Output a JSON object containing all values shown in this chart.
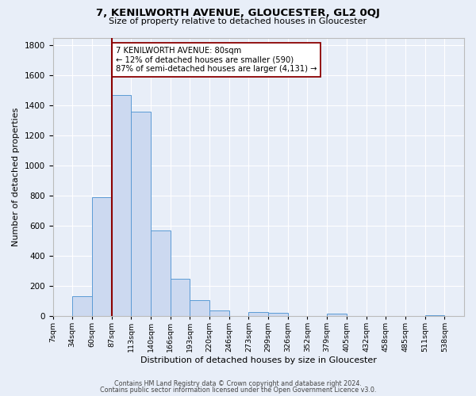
{
  "title": "7, KENILWORTH AVENUE, GLOUCESTER, GL2 0QJ",
  "subtitle": "Size of property relative to detached houses in Gloucester",
  "xlabel": "Distribution of detached houses by size in Gloucester",
  "ylabel": "Number of detached properties",
  "bin_labels": [
    "7sqm",
    "34sqm",
    "60sqm",
    "87sqm",
    "113sqm",
    "140sqm",
    "166sqm",
    "193sqm",
    "220sqm",
    "246sqm",
    "273sqm",
    "299sqm",
    "326sqm",
    "352sqm",
    "379sqm",
    "405sqm",
    "432sqm",
    "458sqm",
    "485sqm",
    "511sqm",
    "538sqm"
  ],
  "bar_heights": [
    0,
    130,
    790,
    1470,
    1360,
    570,
    250,
    105,
    35,
    0,
    25,
    20,
    0,
    0,
    15,
    0,
    0,
    0,
    0,
    5,
    0
  ],
  "bar_color": "#ccd9f0",
  "bar_edge_color": "#5b9bd5",
  "vline_x": 3,
  "vline_color": "#8b0000",
  "annotation_text": "7 KENILWORTH AVENUE: 80sqm\n← 12% of detached houses are smaller (590)\n87% of semi-detached houses are larger (4,131) →",
  "annotation_box_color": "#ffffff",
  "annotation_box_edge": "#8b0000",
  "ylim": [
    0,
    1850
  ],
  "yticks": [
    0,
    200,
    400,
    600,
    800,
    1000,
    1200,
    1400,
    1600,
    1800
  ],
  "bg_color": "#e8eef8",
  "grid_color": "#ffffff",
  "footer_line1": "Contains HM Land Registry data © Crown copyright and database right 2024.",
  "footer_line2": "Contains public sector information licensed under the Open Government Licence v3.0."
}
